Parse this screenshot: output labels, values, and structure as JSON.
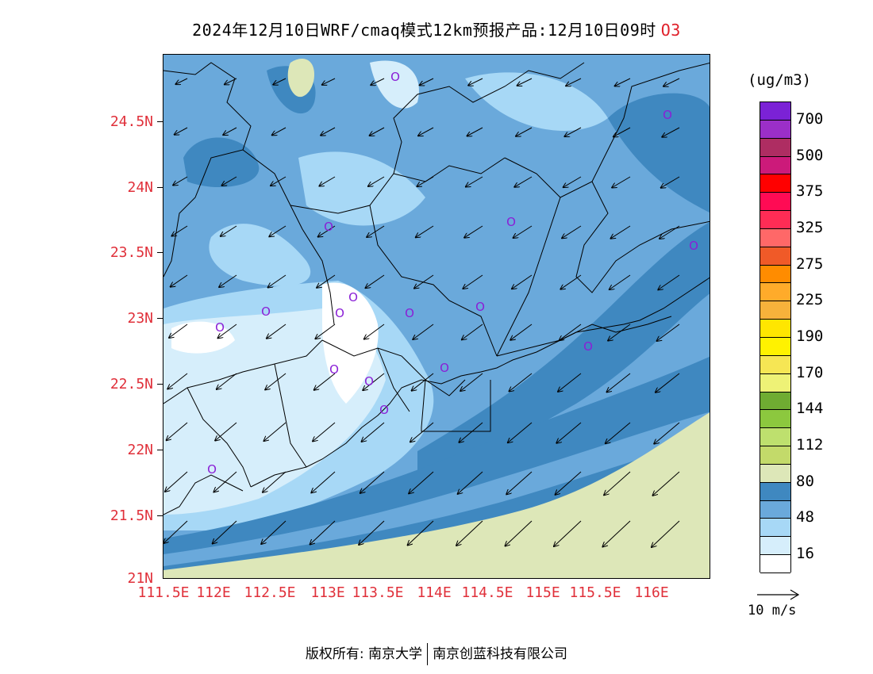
{
  "title": "2024年12月10日WRF/cmaq模式12km预报产品:12月10日09时",
  "variable": "O3",
  "units": "(ug/m3)",
  "map": {
    "lat_labels": [
      "24.5N",
      "24N",
      "23.5N",
      "23N",
      "22.5N",
      "22N",
      "21.5N",
      "21N"
    ],
    "lon_labels": [
      "111.5E",
      "112E",
      "112.5E",
      "113E",
      "113.5E",
      "114E",
      "114.5E",
      "115E",
      "115.5E",
      "116E"
    ],
    "lon_range": [
      111.5,
      116.5
    ],
    "lat_range": [
      21.0,
      24.95
    ],
    "wind_direction": "northeasterly",
    "station_marker": "O"
  },
  "colorbar": {
    "labels": [
      "700",
      "500",
      "375",
      "325",
      "275",
      "225",
      "190",
      "170",
      "144",
      "112",
      "80",
      "48",
      "16"
    ],
    "colors": [
      "#7b22d6",
      "#9b2fc8",
      "#ae2d62",
      "#cc1a7a",
      "#ff0000",
      "#ff0b54",
      "#ff2c55",
      "#ff6868",
      "#f05a28",
      "#ff8c00",
      "#ffab2a",
      "#f7b23b",
      "#ffe600",
      "#fff200",
      "#f6e654",
      "#eef276",
      "#6fac32",
      "#8cc83e",
      "#bee06e",
      "#c3da6a",
      "#dde7b8",
      "#3f88c0",
      "#6aa9db",
      "#a7d8f6",
      "#d6eefb",
      "#ffffff"
    ]
  },
  "reference_vector": "10 m/s",
  "footer": {
    "copyright": "版权所有: 南京大学",
    "company": "南京创蓝科技有限公司"
  },
  "colors": {
    "axis_label": "#e0303a",
    "title_variable": "#e0202a",
    "station": "#8a1fd6"
  }
}
